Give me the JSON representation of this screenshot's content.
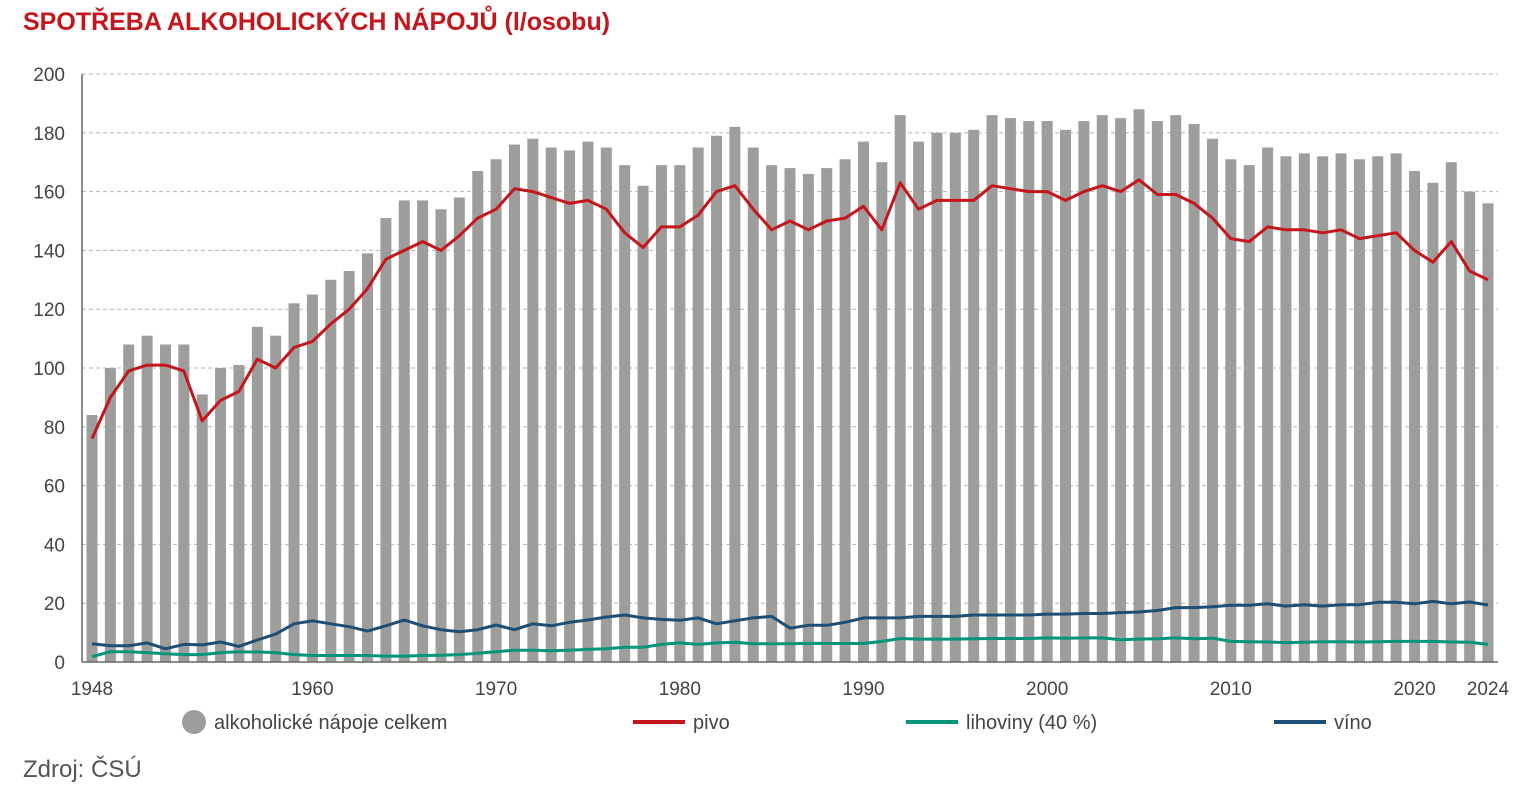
{
  "chart_data": {
    "type": "bar",
    "title": "SPOTŘEBA ALKOHOLICKÝCH NÁPOJŮ (l/osobu)",
    "source": "Zdroj: ČSÚ",
    "xlabel": "",
    "ylabel": "",
    "ylim": [
      0,
      200
    ],
    "yticks": [
      "0",
      "20",
      "40",
      "60",
      "80",
      "100",
      "120",
      "140",
      "160",
      "180",
      "200"
    ],
    "xticks": [
      "1948",
      "1960",
      "1970",
      "1980",
      "1990",
      "2000",
      "2010",
      "2020",
      "2024"
    ],
    "grid": true,
    "legend_position": "bottom",
    "x_start": 1948,
    "x_end": 2024,
    "colors": {
      "bars": "#9d9d9c",
      "pivo": "#c4161c",
      "lihoviny": "#00957a",
      "vino": "#1d4e74"
    },
    "series": [
      {
        "name": "alkoholické nápoje celkem",
        "kind": "bar",
        "values": [
          84,
          100,
          108,
          111,
          108,
          108,
          91,
          100,
          101,
          114,
          111,
          122,
          125,
          130,
          133,
          139,
          151,
          157,
          157,
          154,
          158,
          167,
          171,
          176,
          178,
          175,
          174,
          177,
          175,
          169,
          162,
          169,
          169,
          175,
          179,
          182,
          175,
          169,
          168,
          166,
          168,
          171,
          177,
          170,
          186,
          177,
          180,
          180,
          181,
          186,
          185,
          184,
          184,
          181,
          184,
          186,
          185,
          188,
          184,
          186,
          183,
          178,
          171,
          169,
          175,
          172,
          173,
          172,
          173,
          171,
          172,
          173,
          167,
          163,
          170,
          160,
          156
        ]
      },
      {
        "name": "pivo",
        "kind": "line",
        "values": [
          76,
          90,
          99,
          101,
          101,
          99,
          82,
          89,
          92,
          103,
          100,
          107,
          109,
          115,
          120,
          127,
          137,
          140,
          143,
          140,
          145,
          151,
          154,
          161,
          160,
          158,
          156,
          157,
          154,
          146,
          141,
          148,
          148,
          152,
          160,
          162,
          154,
          147,
          150,
          147,
          150,
          151,
          155,
          147,
          163,
          154,
          157,
          157,
          157,
          162,
          161,
          160,
          160,
          157,
          160,
          162,
          160,
          164,
          159,
          159,
          156,
          151,
          144,
          143,
          148,
          147,
          147,
          146,
          147,
          144,
          145,
          146,
          140,
          136,
          143,
          133,
          130
        ]
      },
      {
        "name": "lihoviny (40 %)",
        "kind": "line",
        "values": [
          1.8,
          3.5,
          3.5,
          3.2,
          2.8,
          2.5,
          2.5,
          3.2,
          3.5,
          3.4,
          3.2,
          2.5,
          2.2,
          2.2,
          2.2,
          2.2,
          2.0,
          2.0,
          2.2,
          2.3,
          2.5,
          3.0,
          3.5,
          4.0,
          4.0,
          3.8,
          4.0,
          4.3,
          4.5,
          5.0,
          5.0,
          6.0,
          6.5,
          6.0,
          6.5,
          6.7,
          6.2,
          6.2,
          6.2,
          6.4,
          6.3,
          6.3,
          6.3,
          7.0,
          8.0,
          7.8,
          7.8,
          7.8,
          7.9,
          8.0,
          8.0,
          8.0,
          8.2,
          8.1,
          8.2,
          8.2,
          7.6,
          7.8,
          7.9,
          8.2,
          7.9,
          8.1,
          7.0,
          6.9,
          6.8,
          6.6,
          6.7,
          6.9,
          6.9,
          6.8,
          6.9,
          7.0,
          7.0,
          7.0,
          6.8,
          6.7,
          6.0
        ]
      },
      {
        "name": "víno",
        "kind": "line",
        "values": [
          6.2,
          5.5,
          5.5,
          6.5,
          4.5,
          6.0,
          5.8,
          6.8,
          5.3,
          7.5,
          9.5,
          13,
          14,
          13,
          12,
          10.5,
          12.3,
          14.3,
          12.3,
          11,
          10.3,
          11,
          12.6,
          11,
          13,
          12.3,
          13.5,
          14.3,
          15.3,
          16,
          15,
          14.5,
          14.2,
          15,
          13,
          14,
          15,
          15.5,
          11.5,
          12.5,
          12.5,
          13.5,
          15,
          15,
          15,
          15.5,
          15.5,
          15.5,
          16,
          16,
          16,
          16,
          16.3,
          16.3,
          16.5,
          16.5,
          16.8,
          17,
          17.5,
          18.5,
          18.5,
          18.8,
          19.3,
          19.3,
          19.8,
          19,
          19.5,
          19,
          19.5,
          19.5,
          20.3,
          20.3,
          19.8,
          20.6,
          19.8,
          20.4,
          19.4
        ]
      }
    ]
  }
}
